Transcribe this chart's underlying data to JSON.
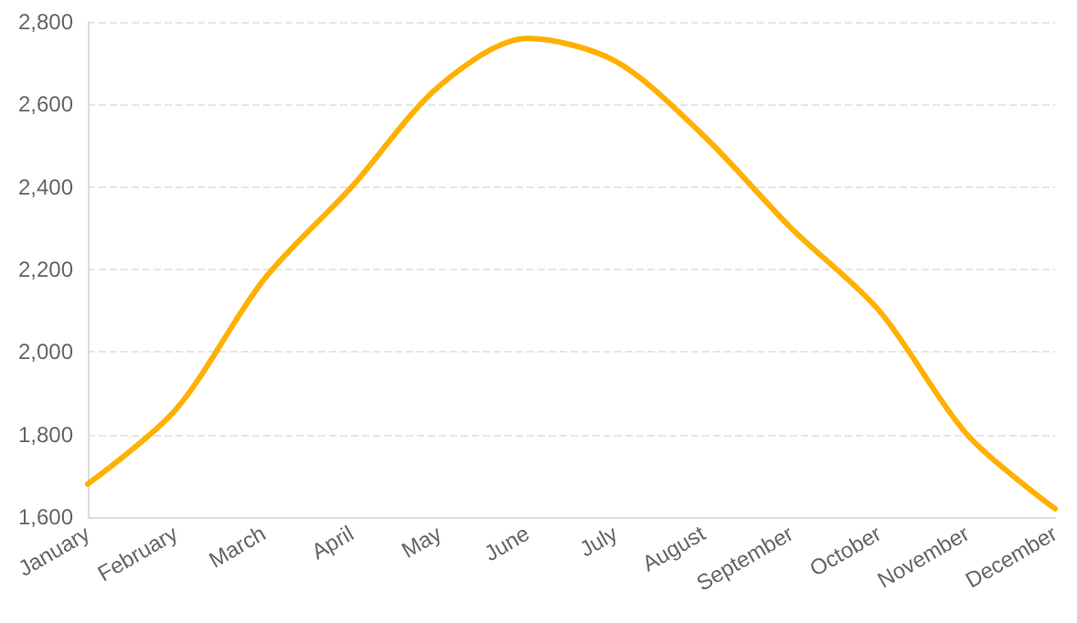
{
  "chart_data": {
    "type": "line",
    "categories": [
      "January",
      "February",
      "March",
      "April",
      "May",
      "June",
      "July",
      "August",
      "September",
      "October",
      "November",
      "December"
    ],
    "series": [
      {
        "color": "#ffb000",
        "values": [
          1680,
          1860,
          2175,
          2400,
          2645,
          2760,
          2705,
          2525,
          2300,
          2100,
          1800,
          1620
        ]
      }
    ],
    "ylim": [
      1600,
      2800
    ],
    "yticks": [
      {
        "value": 1600,
        "label": "1,600"
      },
      {
        "value": 1800,
        "label": "1,800"
      },
      {
        "value": 2000,
        "label": "2,000"
      },
      {
        "value": 2200,
        "label": "2,200"
      },
      {
        "value": 2400,
        "label": "2,400"
      },
      {
        "value": 2600,
        "label": "2,600"
      },
      {
        "value": 2800,
        "label": "2,800"
      }
    ],
    "grid": "y",
    "marker": "none",
    "line_style": "solid"
  }
}
